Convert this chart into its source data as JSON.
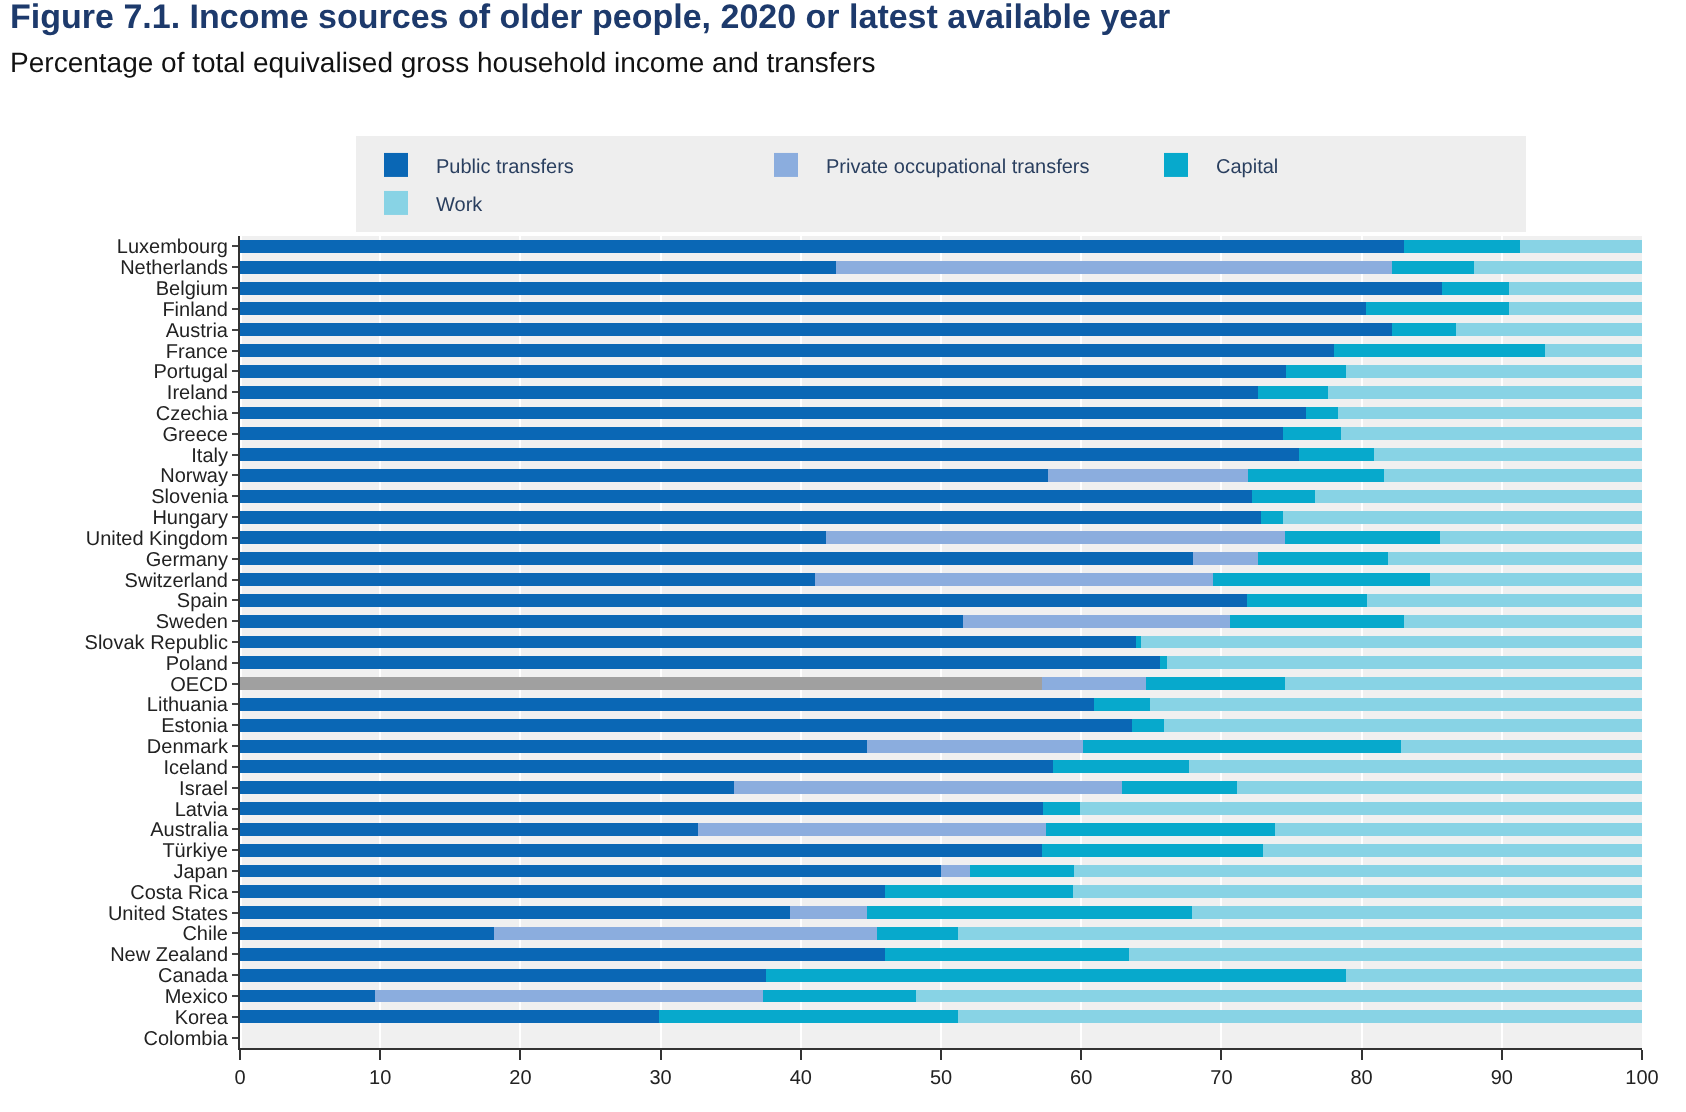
{
  "chart_data": {
    "type": "bar",
    "orientation": "horizontal",
    "stacked": true,
    "title": "Figure 7.1. Income sources of older people, 2020 or latest available year",
    "subtitle": "Percentage of total equivalised gross household income and transfers",
    "categories": [
      "Luxembourg",
      "Netherlands",
      "Belgium",
      "Finland",
      "Austria",
      "France",
      "Portugal",
      "Ireland",
      "Czechia",
      "Greece",
      "Italy",
      "Norway",
      "Slovenia",
      "Hungary",
      "United Kingdom",
      "Germany",
      "Switzerland",
      "Spain",
      "Sweden",
      "Slovak Republic",
      "Poland",
      "OECD",
      "Lithuania",
      "Estonia",
      "Denmark",
      "Iceland",
      "Israel",
      "Latvia",
      "Australia",
      "Türkiye",
      "Japan",
      "Costa Rica",
      "United States",
      "Chile",
      "New Zealand",
      "Canada",
      "Mexico",
      "Korea",
      "Colombia"
    ],
    "series": [
      {
        "name": "Public transfers",
        "color": "#0a67b5",
        "colors": [
          "#0a67b5",
          "#0a67b5",
          "#0a67b5",
          "#0a67b5",
          "#0a67b5",
          "#0a67b5",
          "#0a67b5",
          "#0a67b5",
          "#0a67b5",
          "#0a67b5",
          "#0a67b5",
          "#0a67b5",
          "#0a67b5",
          "#0a67b5",
          "#0a67b5",
          "#0a67b5",
          "#0a67b5",
          "#0a67b5",
          "#0a67b5",
          "#0a67b5",
          "#0a67b5",
          "#a0a0a0",
          "#0a67b5",
          "#0a67b5",
          "#0a67b5",
          "#0a67b5",
          "#0a67b5",
          "#0a67b5",
          "#0a67b5",
          "#0a67b5",
          "#0a67b5",
          "#0a67b5",
          "#0a67b5",
          "#0a67b5",
          "#0a67b5",
          "#0a67b5",
          "#0a67b5",
          "#0a67b5",
          "#0a67b5"
        ],
        "values": [
          83,
          42.5,
          85.7,
          80.3,
          82.2,
          78,
          74.6,
          72.6,
          76,
          74.4,
          75.5,
          57.6,
          72.2,
          72.8,
          41.8,
          68,
          41,
          71.8,
          51.6,
          63.9,
          65.6,
          57.2,
          60.9,
          63.6,
          44.7,
          58,
          35.2,
          57.3,
          32.7,
          57.2,
          50,
          46,
          39.2,
          18.1,
          46,
          37.5,
          9.6,
          29.9,
          null
        ]
      },
      {
        "name": "Private occupational transfers",
        "color": "#8badde",
        "values": [
          0,
          39.7,
          0,
          0,
          0,
          0,
          0,
          0,
          0,
          0,
          0,
          14.3,
          0,
          0,
          32.7,
          4.6,
          28.4,
          0,
          19,
          0,
          0,
          7.4,
          0,
          0,
          15.4,
          0,
          27.7,
          0,
          24.8,
          0,
          2.1,
          0,
          5.5,
          27.3,
          0,
          0,
          27.7,
          0,
          null
        ]
      },
      {
        "name": "Capital",
        "color": "#07a9cc",
        "values": [
          8.3,
          5.8,
          4.8,
          10.2,
          4.5,
          15.1,
          4.3,
          5,
          2.3,
          4.1,
          5.4,
          9.7,
          4.5,
          1.6,
          11.1,
          9.3,
          15.5,
          8.6,
          12.4,
          0.4,
          0.5,
          9.9,
          4,
          2.3,
          22.7,
          9.7,
          8.2,
          2.6,
          16.3,
          15.8,
          7.4,
          13.4,
          23.2,
          5.8,
          17.4,
          41.4,
          10.9,
          21.3,
          null
        ]
      },
      {
        "name": "Work",
        "color": "#88d3e5",
        "values": [
          8.7,
          12,
          9.5,
          9.5,
          13.3,
          6.9,
          21.1,
          22.4,
          21.7,
          21.5,
          19.1,
          18.4,
          23.3,
          25.6,
          14.4,
          18.1,
          15.1,
          19.6,
          17,
          35.7,
          33.9,
          25.5,
          35.1,
          34.1,
          17.2,
          32.3,
          28.9,
          40.1,
          26.2,
          27,
          40.5,
          40.6,
          32.1,
          48.8,
          36.6,
          21.1,
          51.8,
          48.8,
          null
        ]
      }
    ],
    "xlim": [
      0,
      100
    ],
    "xticks": [
      0,
      10,
      20,
      30,
      40,
      50,
      60,
      70,
      80,
      90,
      100
    ],
    "grid": "x",
    "legend": "top"
  }
}
